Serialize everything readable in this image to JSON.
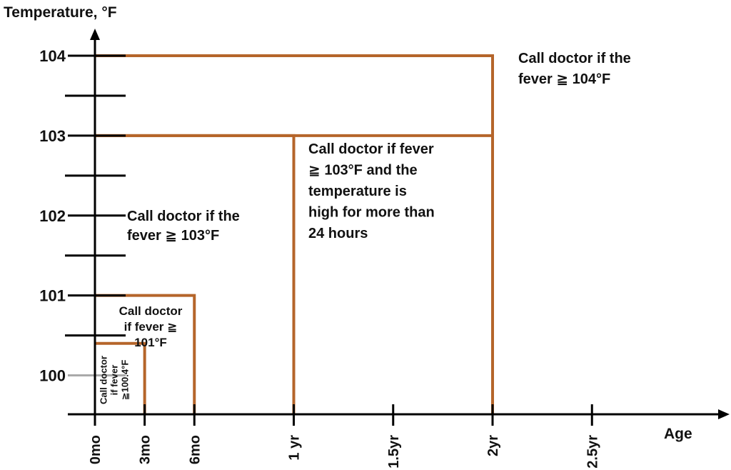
{
  "chart_data": {
    "type": "step-region",
    "ylabel": "Temperature, °F",
    "xlabel": "Age",
    "y_ticks": [
      {
        "value": 100,
        "label": "100"
      },
      {
        "value": 101,
        "label": "101"
      },
      {
        "value": 102,
        "label": "102"
      },
      {
        "value": 103,
        "label": "103"
      },
      {
        "value": 104,
        "label": "104"
      }
    ],
    "y_minor_ticks": [
      100.5,
      101.5,
      102.5,
      103.5
    ],
    "x_ticks": [
      {
        "value": 0,
        "label": "0mo"
      },
      {
        "value": 0.25,
        "label": "3mo"
      },
      {
        "value": 0.5,
        "label": "6mo"
      },
      {
        "value": 1,
        "label": "1 yr"
      },
      {
        "value": 1.5,
        "label": "1.5yr"
      },
      {
        "value": 2,
        "label": "2yr"
      },
      {
        "value": 2.5,
        "label": "2.5yr"
      }
    ],
    "reference_line": 100,
    "regions": [
      {
        "age_to": 0.25,
        "threshold": 100.4,
        "label_lines": [
          "Call doctor",
          "if fever",
          "≧100.4°F"
        ]
      },
      {
        "age_to": 0.5,
        "threshold": 101,
        "label_lines": [
          "Call doctor",
          "if fever  ≧",
          "101°F"
        ]
      },
      {
        "age_to": 1,
        "threshold": 103,
        "label_lines": [
          "Call doctor if the",
          "fever ≧ 103°F"
        ]
      },
      {
        "age_to": 2,
        "threshold": 103,
        "label_lines": [
          "Call doctor if fever",
          "≧ 103°F and the",
          "temperature is",
          "high for more than",
          "24 hours"
        ]
      },
      {
        "age_to": 2,
        "threshold": 104,
        "label_lines": [
          "Call doctor if the",
          "fever ≧ 104°F"
        ]
      }
    ]
  },
  "colors": {
    "axis": "#000000",
    "step_line": "#b5652a",
    "reference_line": "#aaaaaa"
  }
}
